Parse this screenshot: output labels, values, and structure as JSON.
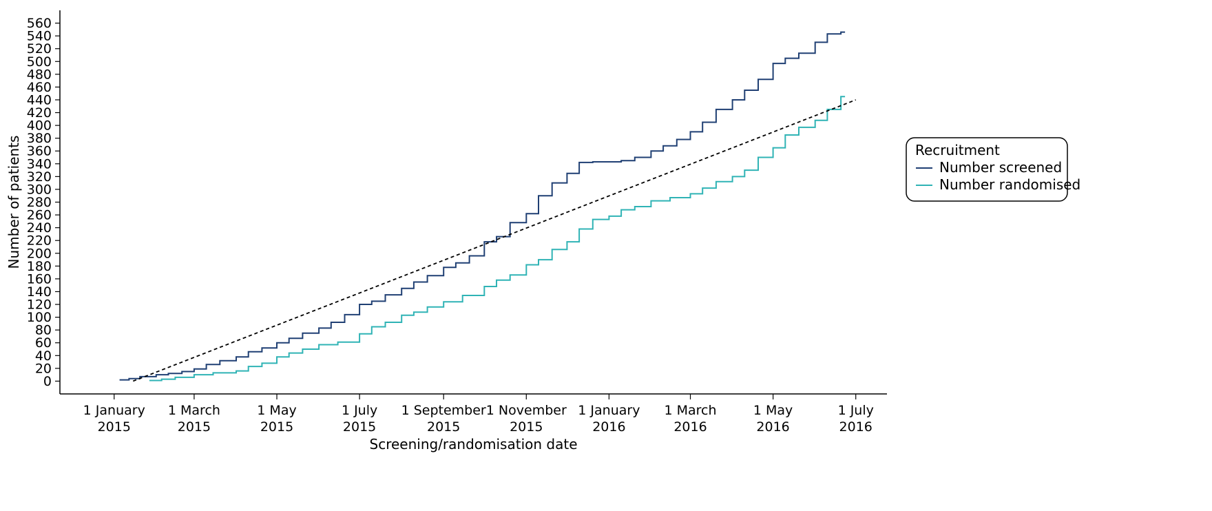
{
  "chart_data": {
    "type": "line",
    "xlabel": "Screening/randomisation date",
    "ylabel": "Number of patients",
    "xlim": [
      "2014-11-22",
      "2016-07-24"
    ],
    "ylim": [
      -20,
      580
    ],
    "y_ticks": [
      0,
      20,
      40,
      60,
      80,
      100,
      120,
      140,
      160,
      180,
      200,
      220,
      240,
      260,
      280,
      300,
      320,
      340,
      360,
      380,
      400,
      420,
      440,
      460,
      480,
      500,
      520,
      540,
      560
    ],
    "x_ticks": [
      {
        "date": "2015-01-01",
        "line1": "1 January",
        "line2": "2015"
      },
      {
        "date": "2015-03-01",
        "line1": "1 March",
        "line2": "2015"
      },
      {
        "date": "2015-05-01",
        "line1": "1 May",
        "line2": "2015"
      },
      {
        "date": "2015-07-01",
        "line1": "1 July",
        "line2": "2015"
      },
      {
        "date": "2015-09-01",
        "line1": "1 September",
        "line2": "2015"
      },
      {
        "date": "2015-11-01",
        "line1": "1 November",
        "line2": "2015"
      },
      {
        "date": "2016-01-01",
        "line1": "1 January",
        "line2": "2016"
      },
      {
        "date": "2016-03-01",
        "line1": "1 March",
        "line2": "2016"
      },
      {
        "date": "2016-05-01",
        "line1": "1 May",
        "line2": "2016"
      },
      {
        "date": "2016-07-01",
        "line1": "1 July",
        "line2": "2016"
      }
    ],
    "legend": {
      "title": "Recruitment",
      "position": "right"
    },
    "series": [
      {
        "name": "Number screened",
        "color": "#1f3f73",
        "style": "step",
        "points": [
          [
            "2015-01-05",
            2
          ],
          [
            "2015-01-12",
            4
          ],
          [
            "2015-01-20",
            7
          ],
          [
            "2015-02-01",
            10
          ],
          [
            "2015-02-10",
            12
          ],
          [
            "2015-02-20",
            15
          ],
          [
            "2015-03-01",
            19
          ],
          [
            "2015-03-10",
            26
          ],
          [
            "2015-03-20",
            32
          ],
          [
            "2015-04-01",
            38
          ],
          [
            "2015-04-10",
            46
          ],
          [
            "2015-04-20",
            52
          ],
          [
            "2015-05-01",
            60
          ],
          [
            "2015-05-10",
            67
          ],
          [
            "2015-05-20",
            75
          ],
          [
            "2015-06-01",
            83
          ],
          [
            "2015-06-10",
            92
          ],
          [
            "2015-06-20",
            104
          ],
          [
            "2015-07-01",
            120
          ],
          [
            "2015-07-10",
            125
          ],
          [
            "2015-07-20",
            135
          ],
          [
            "2015-08-01",
            145
          ],
          [
            "2015-08-10",
            155
          ],
          [
            "2015-08-20",
            165
          ],
          [
            "2015-09-01",
            178
          ],
          [
            "2015-09-10",
            185
          ],
          [
            "2015-09-20",
            196
          ],
          [
            "2015-10-01",
            218
          ],
          [
            "2015-10-10",
            226
          ],
          [
            "2015-10-20",
            248
          ],
          [
            "2015-11-01",
            262
          ],
          [
            "2015-11-10",
            290
          ],
          [
            "2015-11-20",
            310
          ],
          [
            "2015-12-01",
            325
          ],
          [
            "2015-12-10",
            342
          ],
          [
            "2015-12-20",
            343
          ],
          [
            "2016-01-01",
            343
          ],
          [
            "2016-01-10",
            345
          ],
          [
            "2016-01-20",
            350
          ],
          [
            "2016-02-01",
            360
          ],
          [
            "2016-02-10",
            368
          ],
          [
            "2016-02-20",
            378
          ],
          [
            "2016-03-01",
            390
          ],
          [
            "2016-03-10",
            405
          ],
          [
            "2016-03-20",
            425
          ],
          [
            "2016-04-01",
            440
          ],
          [
            "2016-04-10",
            455
          ],
          [
            "2016-04-20",
            472
          ],
          [
            "2016-05-01",
            497
          ],
          [
            "2016-05-10",
            505
          ],
          [
            "2016-05-20",
            513
          ],
          [
            "2016-06-01",
            530
          ],
          [
            "2016-06-10",
            543
          ],
          [
            "2016-06-20",
            546
          ]
        ]
      },
      {
        "name": "Number randomised",
        "color": "#2fb3b5",
        "style": "step",
        "points": [
          [
            "2015-01-27",
            1
          ],
          [
            "2015-02-05",
            3
          ],
          [
            "2015-02-15",
            6
          ],
          [
            "2015-03-01",
            10
          ],
          [
            "2015-03-15",
            13
          ],
          [
            "2015-04-01",
            16
          ],
          [
            "2015-04-10",
            23
          ],
          [
            "2015-04-20",
            28
          ],
          [
            "2015-05-01",
            38
          ],
          [
            "2015-05-10",
            44
          ],
          [
            "2015-05-20",
            50
          ],
          [
            "2015-06-01",
            57
          ],
          [
            "2015-06-15",
            61
          ],
          [
            "2015-07-01",
            74
          ],
          [
            "2015-07-10",
            85
          ],
          [
            "2015-07-20",
            92
          ],
          [
            "2015-08-01",
            103
          ],
          [
            "2015-08-10",
            108
          ],
          [
            "2015-08-20",
            116
          ],
          [
            "2015-09-01",
            124
          ],
          [
            "2015-09-15",
            134
          ],
          [
            "2015-10-01",
            148
          ],
          [
            "2015-10-10",
            158
          ],
          [
            "2015-10-20",
            166
          ],
          [
            "2015-11-01",
            182
          ],
          [
            "2015-11-10",
            190
          ],
          [
            "2015-11-20",
            206
          ],
          [
            "2015-12-01",
            218
          ],
          [
            "2015-12-10",
            238
          ],
          [
            "2015-12-20",
            253
          ],
          [
            "2016-01-01",
            258
          ],
          [
            "2016-01-10",
            268
          ],
          [
            "2016-01-20",
            273
          ],
          [
            "2016-02-01",
            282
          ],
          [
            "2016-02-15",
            287
          ],
          [
            "2016-03-01",
            293
          ],
          [
            "2016-03-10",
            302
          ],
          [
            "2016-03-20",
            312
          ],
          [
            "2016-04-01",
            320
          ],
          [
            "2016-04-10",
            330
          ],
          [
            "2016-04-20",
            350
          ],
          [
            "2016-05-01",
            365
          ],
          [
            "2016-05-10",
            385
          ],
          [
            "2016-05-20",
            397
          ],
          [
            "2016-06-01",
            408
          ],
          [
            "2016-06-10",
            425
          ],
          [
            "2016-06-20",
            445
          ]
        ]
      },
      {
        "name": "",
        "color": "#000000",
        "style": "dashed",
        "points": [
          [
            "2015-01-15",
            0
          ],
          [
            "2016-07-01",
            440
          ]
        ]
      }
    ]
  }
}
